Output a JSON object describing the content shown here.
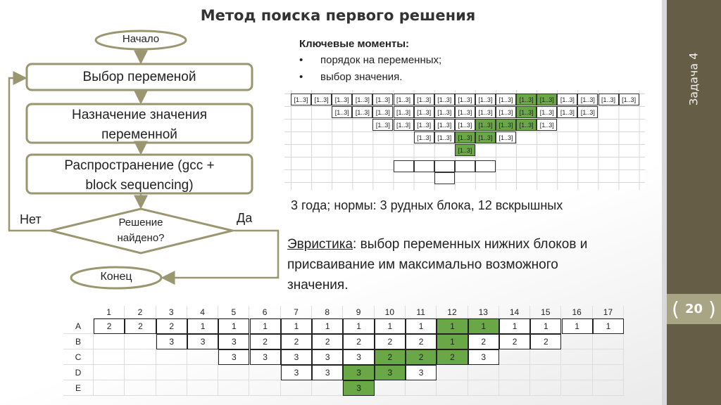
{
  "title": "Метод поиска первого решения",
  "sidebar": {
    "task_label": "Задача 4",
    "page_number": "20",
    "color": "#665d47",
    "band_color": "#a8a584"
  },
  "flowchart": {
    "start": "Начало",
    "select_variable": "Выбор переменой",
    "assign_value": [
      "Назначение значения",
      "переменной"
    ],
    "propagation": [
      "Распространение (gcc +",
      "block sequencing)"
    ],
    "decision": [
      "Решение",
      "найдено?"
    ],
    "no_label": "Нет",
    "yes_label": "Да",
    "end": "Конец",
    "stroke_color": "#9a9670"
  },
  "key_points": {
    "heading": "Ключевые моменты:",
    "bullet": "•",
    "items": [
      "порядок на переменных;",
      "выбор значения."
    ]
  },
  "top_grid": {
    "cell_text": "[1..3]",
    "green_color": "#6aa847",
    "rows": [
      {
        "from": 1,
        "to": 17,
        "green": [
          12,
          13
        ]
      },
      {
        "from": 3,
        "to": 15,
        "green": [
          12
        ]
      },
      {
        "from": 5,
        "to": 13,
        "green": [
          10,
          11,
          12
        ]
      },
      {
        "from": 7,
        "to": 11,
        "green": [
          9,
          10
        ]
      },
      {
        "from": 9,
        "to": 9,
        "green": [
          9
        ]
      }
    ]
  },
  "norms_text": "3 года; нормы: 3 рудных блока, 12 вскрышных",
  "heuristic": {
    "label": "Эвристика",
    "text": ": выбор переменных нижних блоков и присваивание им максимально возможного значения."
  },
  "table": {
    "columns": [
      "1",
      "2",
      "3",
      "4",
      "5",
      "6",
      "7",
      "8",
      "9",
      "10",
      "11",
      "12",
      "13",
      "14",
      "15",
      "16",
      "17"
    ],
    "rows": [
      {
        "label": "A",
        "from": 1,
        "values": [
          "2",
          "2",
          "2",
          "1",
          "1",
          "1",
          "1",
          "1",
          "1",
          "1",
          "1",
          "1",
          "1",
          "1",
          "1",
          "1",
          "1"
        ],
        "green": [
          12,
          13
        ]
      },
      {
        "label": "B",
        "from": 3,
        "values": [
          "3",
          "3",
          "3",
          "2",
          "2",
          "2",
          "2",
          "2",
          "2",
          "1",
          "2",
          "2",
          "2"
        ],
        "green": [
          12
        ]
      },
      {
        "label": "C",
        "from": 5,
        "values": [
          "3",
          "3",
          "3",
          "3",
          "3",
          "2",
          "2",
          "2",
          "3"
        ],
        "green": [
          10,
          11,
          12
        ]
      },
      {
        "label": "D",
        "from": 7,
        "values": [
          "3",
          "3",
          "3",
          "3",
          "3"
        ],
        "green": [
          9,
          10
        ]
      },
      {
        "label": "E",
        "from": 9,
        "values": [
          "3"
        ],
        "green": [
          9
        ]
      }
    ]
  }
}
